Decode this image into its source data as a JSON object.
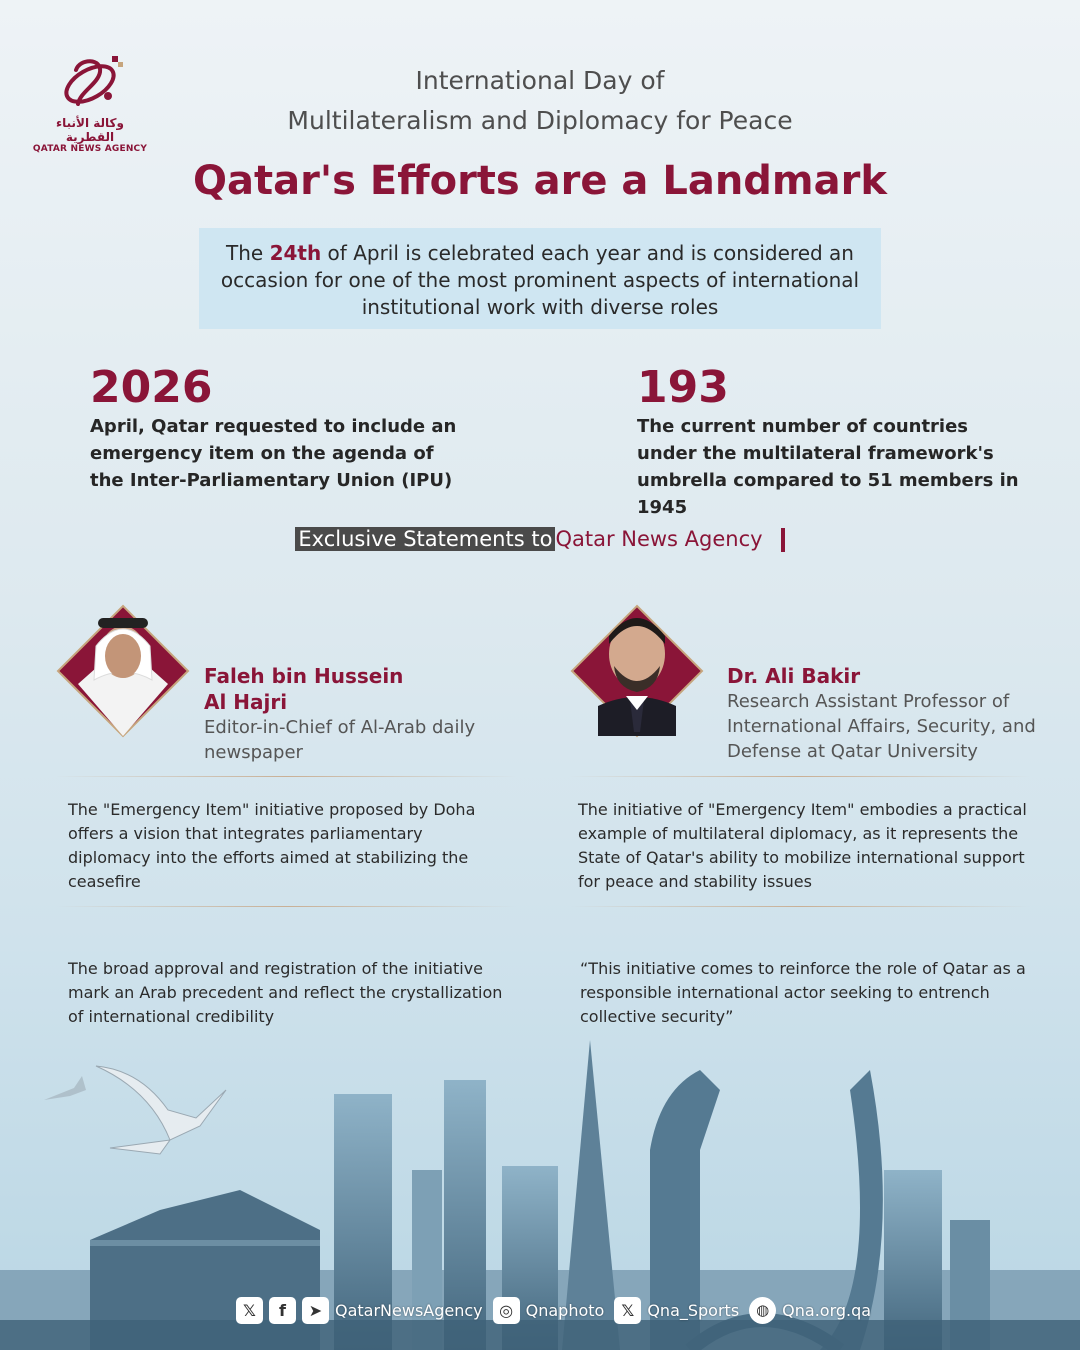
{
  "logo": {
    "arabic": "وكالة الأنباء القطرية",
    "english": "QATAR NEWS AGENCY",
    "icon": "qna-logo-icon"
  },
  "header": {
    "title_line1": "International Day of",
    "title_line2": "Multilateralism and Diplomacy for Peace",
    "headline": "Qatar's Efforts are a Landmark"
  },
  "intro": {
    "before": "The ",
    "highlight": "24th",
    "after": " of April is celebrated each year and is considered an occasion for one of the most prominent aspects of international institutional work with diverse roles"
  },
  "stats": [
    {
      "number": "2026",
      "description": "April, Qatar requested to include an emergency item on the agenda of the Inter-Parliamentary Union (IPU)"
    },
    {
      "number": "193",
      "description": "The current number of countries under the multilateral framework's umbrella compared to 51 members in 1945"
    }
  ],
  "exclusive": {
    "label": "Exclusive Statements to",
    "agency": "Qatar News Agency"
  },
  "people": [
    {
      "name_line1": "Faleh bin Hussein",
      "name_line2": "Al Hajri",
      "role": "Editor-in-Chief of Al-Arab daily newspaper",
      "quotes": [
        "The \"Emergency Item\" initiative proposed by Doha offers a vision that integrates parliamentary diplomacy into the efforts aimed at stabilizing the ceasefire",
        "The broad approval and registration of the initiative mark an Arab precedent and reflect the crystallization of international credibility"
      ]
    },
    {
      "name_line1": "Dr. Ali Bakir",
      "role": "Research Assistant Professor of International Affairs, Security, and Defense at Qatar University",
      "quotes": [
        "The initiative of \"Emergency Item\" embodies a practical example of multilateral diplomacy, as it represents the State of Qatar's ability to mobilize international support for peace and stability issues",
        "“This initiative comes to reinforce the role of Qatar as a responsible international actor seeking to entrench collective security”"
      ]
    }
  ],
  "footer": {
    "handle1": "QatarNewsAgency",
    "handle2": "Qnaphoto",
    "handle3": "Qna_Sports",
    "website": "Qna.org.qa",
    "icons": [
      "x-icon",
      "facebook-icon",
      "telegram-icon",
      "instagram-icon",
      "x-icon",
      "web-icon"
    ]
  },
  "colors": {
    "brand": "#8a1538",
    "intro_bg": "#cfe6f2",
    "badge_bg": "#4a4a4a"
  }
}
